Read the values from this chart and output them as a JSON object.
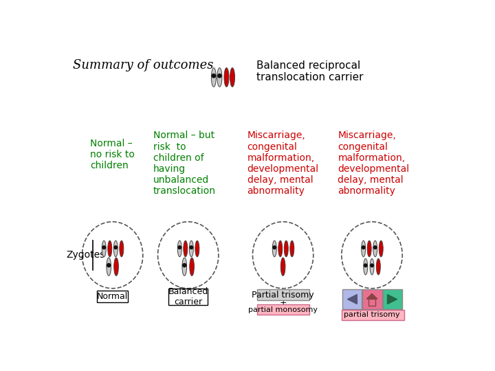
{
  "title": "Summary of outcomes",
  "bg_color": "#ffffff",
  "title_color": "#000000",
  "top_right_label": "Balanced reciprocal\ntranslocation carrier",
  "col1_label": "Normal –\nno risk to\nchildren",
  "col2_label": "Normal – but\nrisk  to\nchildren of\nhaving\nunbalanced\ntranslocation",
  "col3_label": "Miscarriage,\ncongenital\nmalformation,\ndevelopmental\ndelay, mental\nabnormality",
  "col4_label": "Miscarriage,\ncongenital\nmalformation,\ndevelopmental\ndelay, mental\nabnormality",
  "col1_text_color": "#008000",
  "col2_text_color": "#008000",
  "col3_text_color": "#cc0000",
  "col4_text_color": "#cc0000",
  "zygotes_label": "Zygotes",
  "partial_monosomy_bg": "#ffb6c1",
  "partial_trisomy_bg": "#ffb6c1",
  "gray_chr": "#c8c8c8",
  "red_chr": "#cc0000",
  "black_dot": "#111111",
  "red_dot": "#cc0000",
  "btn_back_color": "#b0b8e8",
  "btn_home_color": "#e87090",
  "btn_fwd_color": "#40c090"
}
